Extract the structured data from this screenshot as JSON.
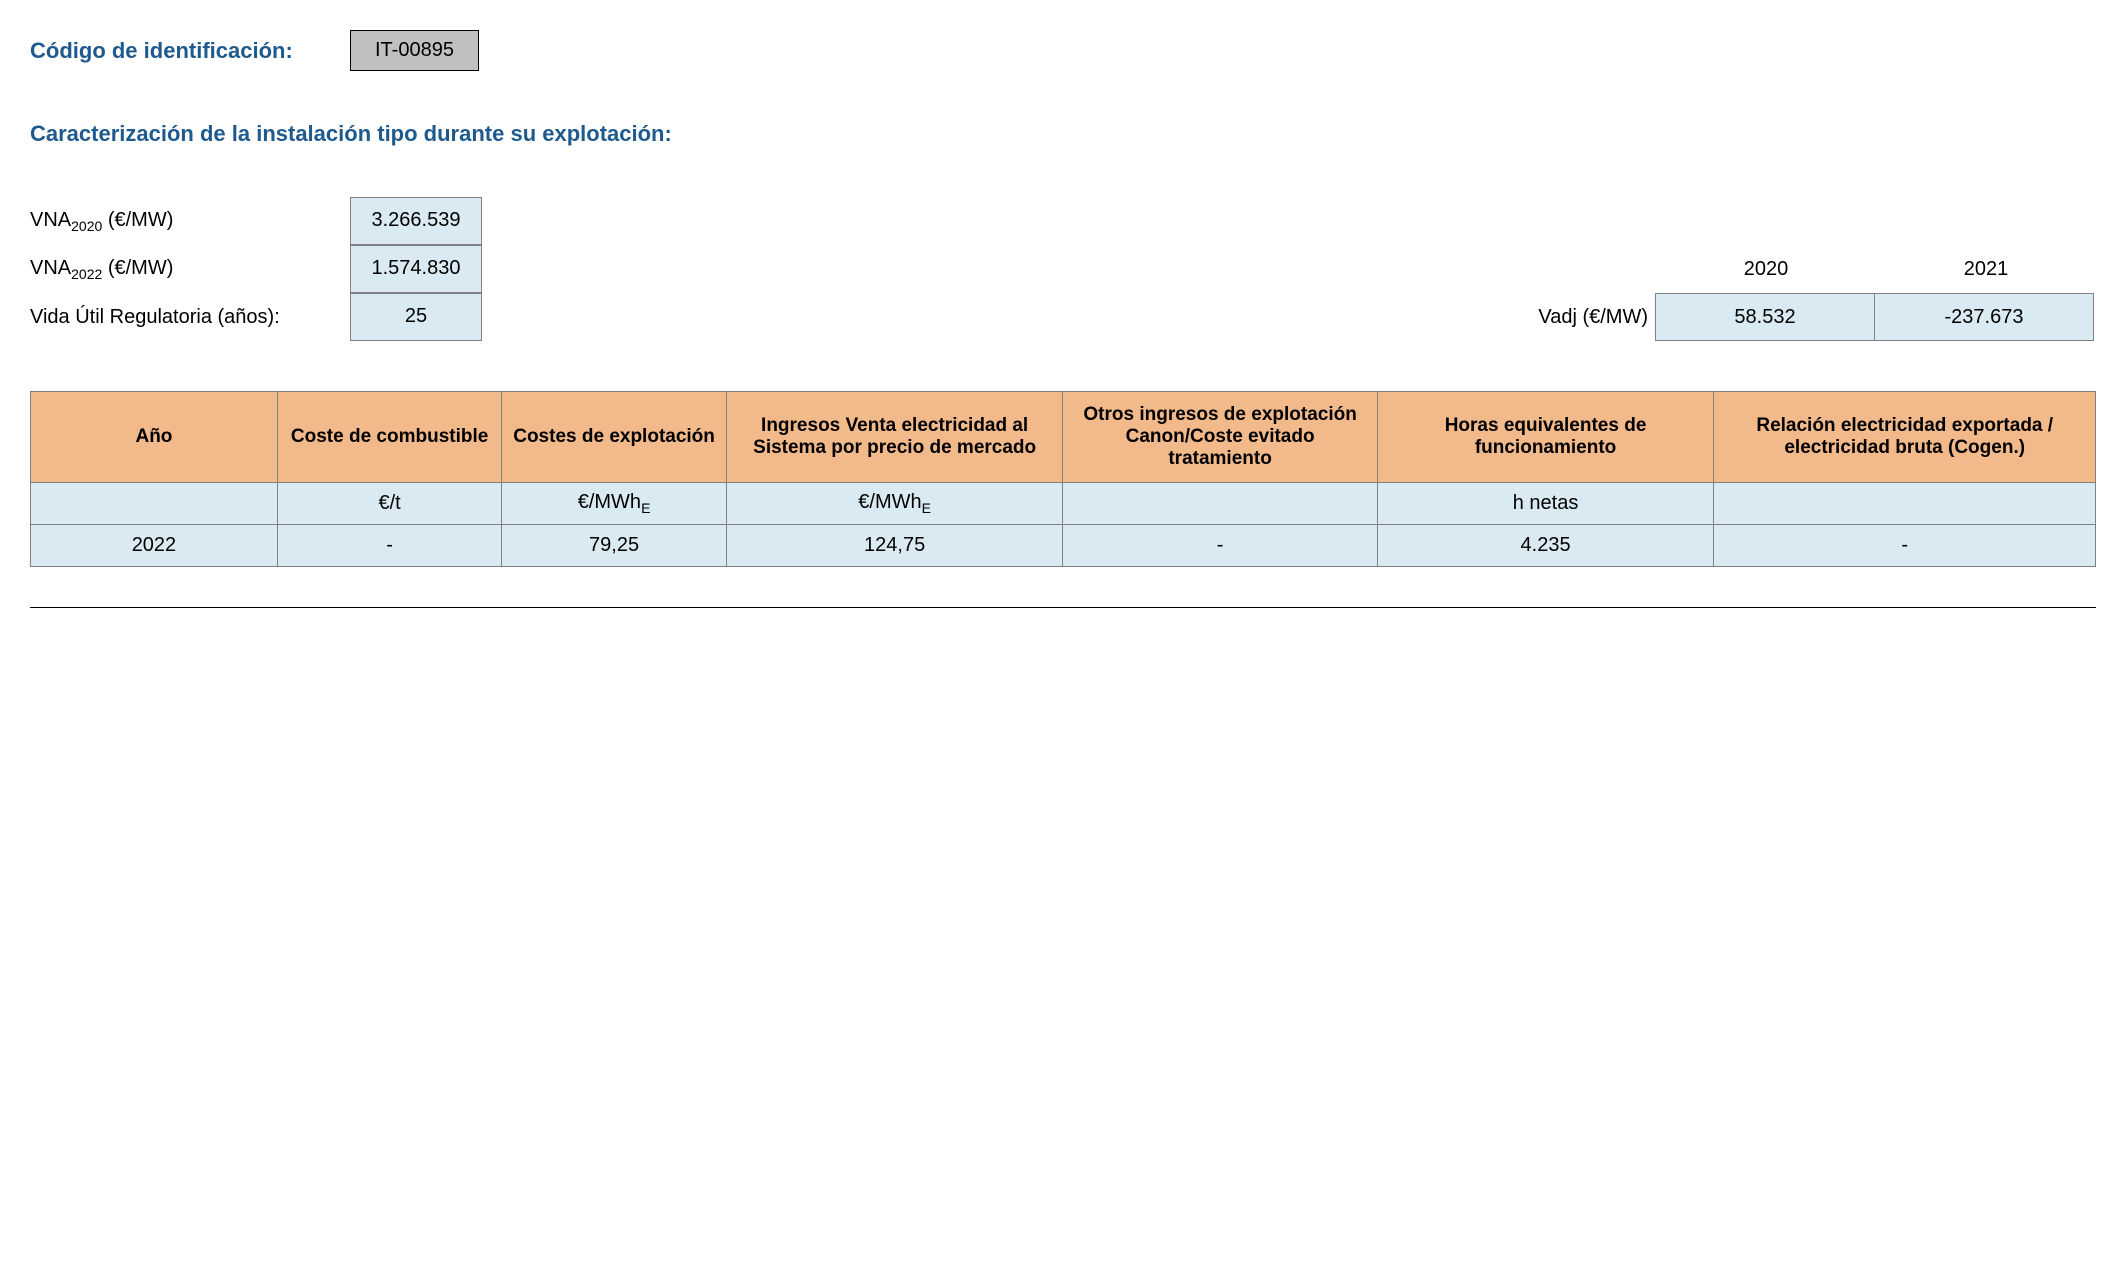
{
  "header": {
    "codigo_label": "Código de identificación:",
    "codigo_value": "IT-00895"
  },
  "section_title": "Caracterización de la instalación tipo durante su explotación:",
  "params": {
    "vna2020_label_prefix": "VNA",
    "vna2020_label_sub": "2020",
    "vna2020_label_suffix": " (€/MW)",
    "vna2020_value": "3.266.539",
    "vna2022_label_prefix": "VNA",
    "vna2022_label_sub": "2022",
    "vna2022_label_suffix": " (€/MW)",
    "vna2022_value": "1.574.830",
    "vida_util_label": "Vida Útil Regulatoria (años):",
    "vida_util_value": "25"
  },
  "vadj": {
    "label": "Vadj (€/MW)",
    "year1_header": "2020",
    "year2_header": "2021",
    "year1_value": "58.532",
    "year2_value": "-237.673"
  },
  "table": {
    "headers": {
      "year": "Año",
      "fuel_cost": "Coste de combustible",
      "expl_cost": "Costes de explotación",
      "sales_income": "Ingresos Venta electricidad al Sistema por precio de mercado",
      "other_income": "Otros ingresos de explotación Canon/Coste evitado tratamiento",
      "hours": "Horas equivalentes de funcionamiento",
      "ratio": "Relación electricidad exportada / electricidad bruta (Cogen.)"
    },
    "units": {
      "year": "",
      "fuel_cost": "€/t",
      "expl_cost_prefix": "€/MWh",
      "expl_cost_sub": "E",
      "sales_income_prefix": "€/MWh",
      "sales_income_sub": "E",
      "other_income": "",
      "hours": "h netas",
      "ratio": ""
    },
    "row": {
      "year": "2022",
      "fuel_cost": "-",
      "expl_cost": "79,25",
      "sales_income": "124,75",
      "other_income": "-",
      "hours": "4.235",
      "ratio": "-"
    }
  },
  "colors": {
    "header_bg": "#f2b98a",
    "cell_bg": "#d9eaf2",
    "code_bg": "#c0c0c0",
    "title_color": "#1f5a8f",
    "border_color": "#808080"
  }
}
